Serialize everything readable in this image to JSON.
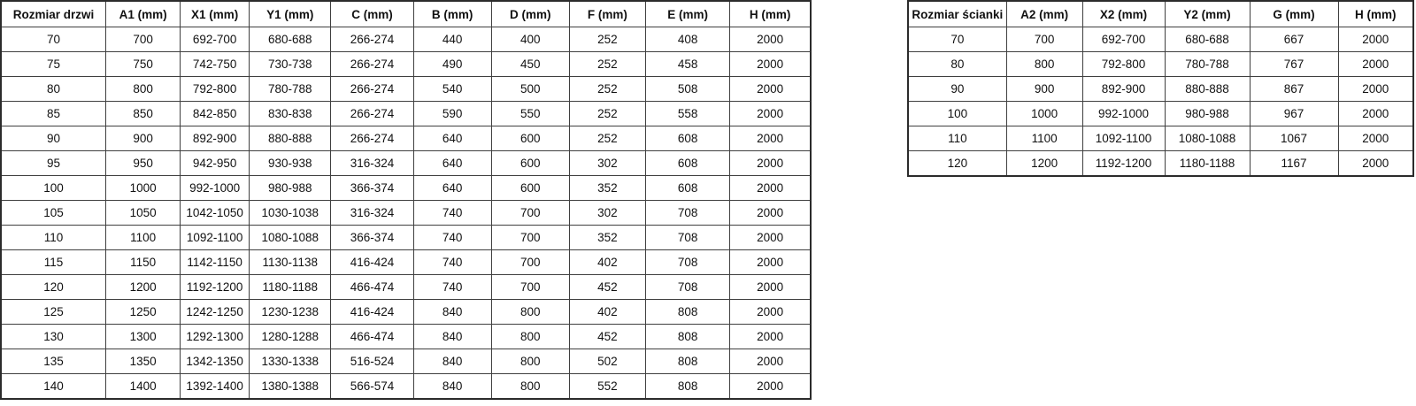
{
  "colors": {
    "background": "#ffffff",
    "border": "#3f3f3f",
    "text": "#111111"
  },
  "doors_table": {
    "headers": [
      "Rozmiar drzwi",
      "A1 (mm)",
      "X1 (mm)",
      "Y1 (mm)",
      "C (mm)",
      "B (mm)",
      "D (mm)",
      "F (mm)",
      "E (mm)",
      "H (mm)"
    ],
    "rows": [
      [
        "70",
        "700",
        "692-700",
        "680-688",
        "266-274",
        "440",
        "400",
        "252",
        "408",
        "2000"
      ],
      [
        "75",
        "750",
        "742-750",
        "730-738",
        "266-274",
        "490",
        "450",
        "252",
        "458",
        "2000"
      ],
      [
        "80",
        "800",
        "792-800",
        "780-788",
        "266-274",
        "540",
        "500",
        "252",
        "508",
        "2000"
      ],
      [
        "85",
        "850",
        "842-850",
        "830-838",
        "266-274",
        "590",
        "550",
        "252",
        "558",
        "2000"
      ],
      [
        "90",
        "900",
        "892-900",
        "880-888",
        "266-274",
        "640",
        "600",
        "252",
        "608",
        "2000"
      ],
      [
        "95",
        "950",
        "942-950",
        "930-938",
        "316-324",
        "640",
        "600",
        "302",
        "608",
        "2000"
      ],
      [
        "100",
        "1000",
        "992-1000",
        "980-988",
        "366-374",
        "640",
        "600",
        "352",
        "608",
        "2000"
      ],
      [
        "105",
        "1050",
        "1042-1050",
        "1030-1038",
        "316-324",
        "740",
        "700",
        "302",
        "708",
        "2000"
      ],
      [
        "110",
        "1100",
        "1092-1100",
        "1080-1088",
        "366-374",
        "740",
        "700",
        "352",
        "708",
        "2000"
      ],
      [
        "115",
        "1150",
        "1142-1150",
        "1130-1138",
        "416-424",
        "740",
        "700",
        "402",
        "708",
        "2000"
      ],
      [
        "120",
        "1200",
        "1192-1200",
        "1180-1188",
        "466-474",
        "740",
        "700",
        "452",
        "708",
        "2000"
      ],
      [
        "125",
        "1250",
        "1242-1250",
        "1230-1238",
        "416-424",
        "840",
        "800",
        "402",
        "808",
        "2000"
      ],
      [
        "130",
        "1300",
        "1292-1300",
        "1280-1288",
        "466-474",
        "840",
        "800",
        "452",
        "808",
        "2000"
      ],
      [
        "135",
        "1350",
        "1342-1350",
        "1330-1338",
        "516-524",
        "840",
        "800",
        "502",
        "808",
        "2000"
      ],
      [
        "140",
        "1400",
        "1392-1400",
        "1380-1388",
        "566-574",
        "840",
        "800",
        "552",
        "808",
        "2000"
      ]
    ]
  },
  "walls_table": {
    "headers": [
      "Rozmiar ścianki",
      "A2 (mm)",
      "X2 (mm)",
      "Y2 (mm)",
      "G (mm)",
      "H (mm)"
    ],
    "rows": [
      [
        "70",
        "700",
        "692-700",
        "680-688",
        "667",
        "2000"
      ],
      [
        "80",
        "800",
        "792-800",
        "780-788",
        "767",
        "2000"
      ],
      [
        "90",
        "900",
        "892-900",
        "880-888",
        "867",
        "2000"
      ],
      [
        "100",
        "1000",
        "992-1000",
        "980-988",
        "967",
        "2000"
      ],
      [
        "110",
        "1100",
        "1092-1100",
        "1080-1088",
        "1067",
        "2000"
      ],
      [
        "120",
        "1200",
        "1192-1200",
        "1180-1188",
        "1167",
        "2000"
      ]
    ]
  }
}
